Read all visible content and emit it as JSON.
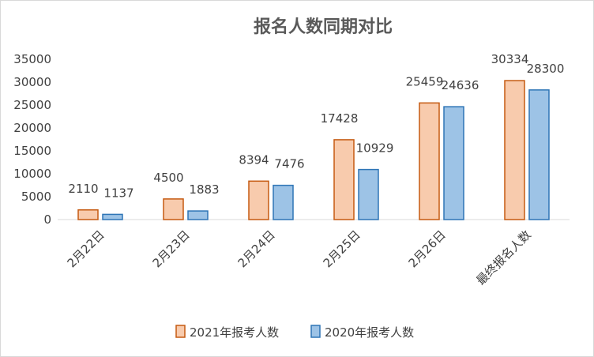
{
  "chart_data": {
    "type": "bar",
    "title": "报名人数同期对比",
    "xlabel": "",
    "ylabel": "",
    "categories": [
      "2月22日",
      "2月23日",
      "2月24日",
      "2月25日",
      "2月26日",
      "最终报名人数"
    ],
    "series": [
      {
        "name": "2021年报考人数",
        "values": [
          2110,
          4500,
          8394,
          17428,
          25459,
          30334
        ],
        "fill": "#F8CBAD",
        "stroke": "#C55A11"
      },
      {
        "name": "2020年报考人数",
        "values": [
          1137,
          1883,
          7476,
          10929,
          24636,
          28300
        ],
        "fill": "#9DC3E6",
        "stroke": "#2E75B6"
      }
    ],
    "ylim": [
      0,
      35000
    ],
    "yticks": [
      0,
      5000,
      10000,
      15000,
      20000,
      25000,
      30000,
      35000
    ],
    "grid": false,
    "legend_position": "bottom"
  }
}
